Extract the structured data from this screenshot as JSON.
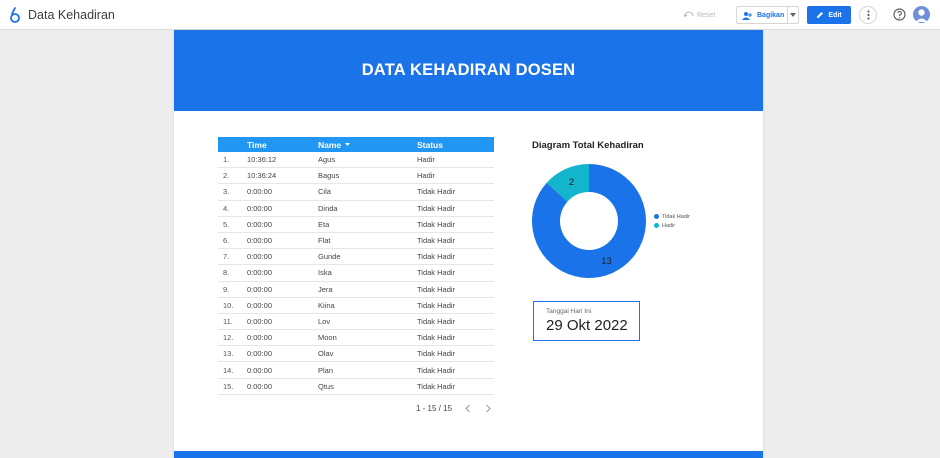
{
  "app": {
    "title": "Data Kehadiran"
  },
  "toolbar": {
    "reset_label": "Reset",
    "share_label": "Bagikan",
    "edit_label": "Edit"
  },
  "colors": {
    "primary": "#1a73e8",
    "header_blue": "#2196f3",
    "teal": "#12b5cb"
  },
  "report": {
    "title": "DATA KEHADIRAN DOSEN",
    "table": {
      "columns": [
        "",
        "Time",
        "Name",
        "Status"
      ],
      "rows": [
        [
          "1.",
          "10:36:12",
          "Agus",
          "Hadir"
        ],
        [
          "2.",
          "10:36:24",
          "Bagus",
          "Hadir"
        ],
        [
          "3.",
          "0:00:00",
          "Cila",
          "Tidak Hadir"
        ],
        [
          "4.",
          "0:00:00",
          "Dinda",
          "Tidak Hadir"
        ],
        [
          "5.",
          "0:00:00",
          "Eta",
          "Tidak Hadir"
        ],
        [
          "6.",
          "0:00:00",
          "Flat",
          "Tidak Hadir"
        ],
        [
          "7.",
          "0:00:00",
          "Gunde",
          "Tidak Hadir"
        ],
        [
          "8.",
          "0:00:00",
          "Iska",
          "Tidak Hadir"
        ],
        [
          "9.",
          "0:00:00",
          "Jera",
          "Tidak Hadir"
        ],
        [
          "10.",
          "0:00:00",
          "Kiina",
          "Tidak Hadir"
        ],
        [
          "11.",
          "0:00:00",
          "Lov",
          "Tidak Hadir"
        ],
        [
          "12.",
          "0:00:00",
          "Moon",
          "Tidak Hadir"
        ],
        [
          "13.",
          "0:00:00",
          "Olav",
          "Tidak Hadir"
        ],
        [
          "14.",
          "0:00:00",
          "Plan",
          "Tidak Hadir"
        ],
        [
          "15.",
          "0:00:00",
          "Qtus",
          "Tidak Hadir"
        ]
      ],
      "pagination": "1 - 15 / 15"
    },
    "chart_title": "Diagram Total Kehadiran",
    "scorecard": {
      "label": "Tanggal Hari Ini",
      "value": "29 Okt 2022"
    }
  },
  "chart_data": {
    "type": "pie",
    "title": "Diagram Total Kehadiran",
    "categories": [
      "Tidak Hadir",
      "Hadir"
    ],
    "values": [
      13,
      2
    ],
    "colors": [
      "#1a73e8",
      "#12b5cb"
    ],
    "legend": "right"
  }
}
